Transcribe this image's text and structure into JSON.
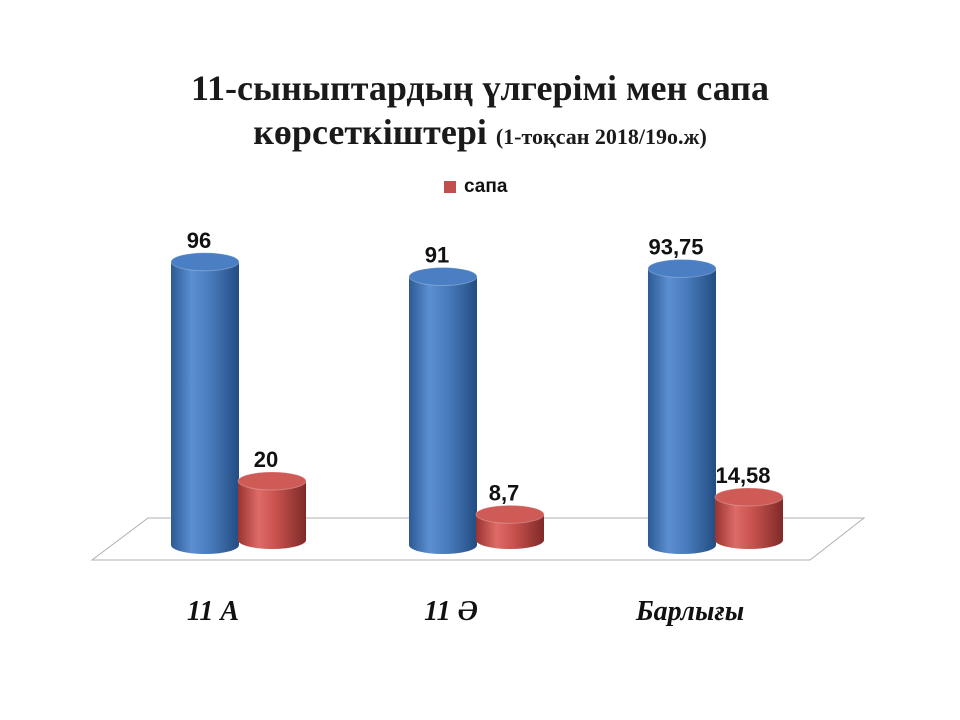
{
  "chart_data": {
    "type": "bar",
    "title_line1": "11-сыныптардың үлгерімі мен сапа",
    "title_line2": "көрсеткіштері",
    "subtitle": "(1-тоқсан 2018/19о.ж)",
    "categories": [
      "11 А",
      "11 Ә",
      "Барлығы"
    ],
    "series": [
      {
        "values": [
          96,
          91,
          93.75
        ],
        "labels": [
          "96",
          "91",
          "93,75"
        ],
        "color": "#4f81bd"
      },
      {
        "name": "сапа",
        "values": [
          20,
          8.7,
          14.58
        ],
        "labels": [
          "20",
          "8,7",
          "14,58"
        ],
        "color": "#c0504d"
      }
    ],
    "legend": {
      "position": "top",
      "entry": "сапа"
    },
    "grid": false,
    "style": "3d-cylinder"
  }
}
